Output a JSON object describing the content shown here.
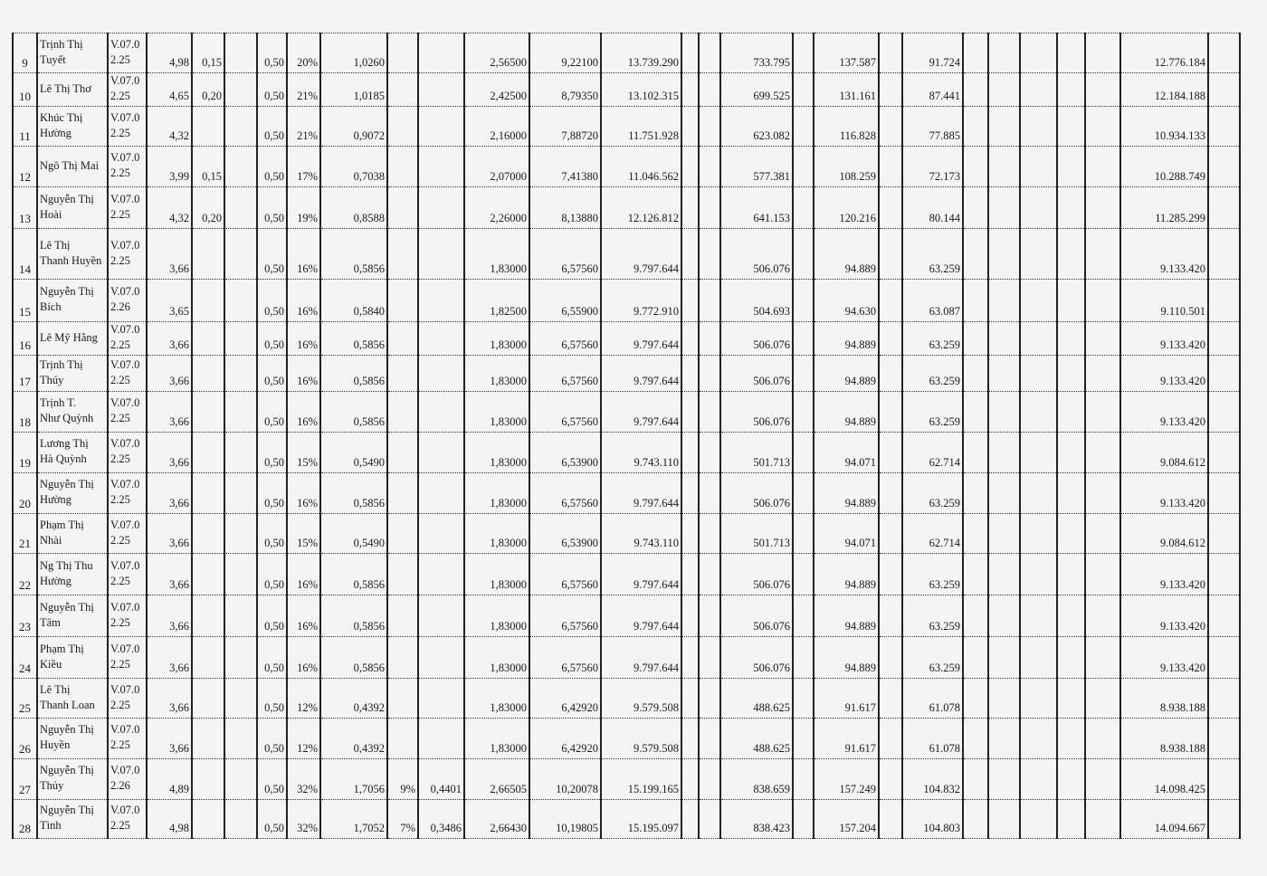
{
  "rows": [
    [
      "9",
      "Trịnh Thị\nTuyết",
      "V.07.0\n2.25",
      "4,98",
      "0,15",
      "",
      "0,50",
      "20%",
      "1,0260",
      "",
      "",
      "2,56500",
      "9,22100",
      "13.739.290",
      "",
      "",
      "733.795",
      "",
      "137.587",
      "",
      "91.724",
      "",
      "",
      "",
      "",
      "",
      "12.776.184",
      ""
    ],
    [
      "10",
      "Lê Thị Thơ",
      "V.07.0\n2.25",
      "4,65",
      "0,20",
      "",
      "0,50",
      "21%",
      "1,0185",
      "",
      "",
      "2,42500",
      "8,79350",
      "13.102.315",
      "",
      "",
      "699.525",
      "",
      "131.161",
      "",
      "87.441",
      "",
      "",
      "",
      "",
      "",
      "12.184.188",
      ""
    ],
    [
      "11",
      "Khúc Thị\nHường",
      "V.07.0\n2.25",
      "4,32",
      "",
      "",
      "0,50",
      "21%",
      "0,9072",
      "",
      "",
      "2,16000",
      "7,88720",
      "11.751.928",
      "",
      "",
      "623.082",
      "",
      "116.828",
      "",
      "77.885",
      "",
      "",
      "",
      "",
      "",
      "10.934.133",
      ""
    ],
    [
      "12",
      "Ngô Thị Mai",
      "V.07.0\n2.25",
      "3,99",
      "0,15",
      "",
      "0,50",
      "17%",
      "0,7038",
      "",
      "",
      "2,07000",
      "7,41380",
      "11.046.562",
      "",
      "",
      "577.381",
      "",
      "108.259",
      "",
      "72.173",
      "",
      "",
      "",
      "",
      "",
      "10.288.749",
      ""
    ],
    [
      "13",
      "Nguyễn Thị\nHoài",
      "V.07.0\n2.25",
      "4,32",
      "0,20",
      "",
      "0,50",
      "19%",
      "0,8588",
      "",
      "",
      "2,26000",
      "8,13880",
      "12.126.812",
      "",
      "",
      "641.153",
      "",
      "120.216",
      "",
      "80.144",
      "",
      "",
      "",
      "",
      "",
      "11.285.299",
      ""
    ],
    [
      "14",
      "Lê Thị\nThanh Huyền",
      "V.07.0\n2.25",
      "3,66",
      "",
      "",
      "0,50",
      "16%",
      "0,5856",
      "",
      "",
      "1,83000",
      "6,57560",
      "9.797.644",
      "",
      "",
      "506.076",
      "",
      "94.889",
      "",
      "63.259",
      "",
      "",
      "",
      "",
      "",
      "9.133.420",
      ""
    ],
    [
      "15",
      "Nguyễn Thị\nBích",
      "V.07.0\n2.26",
      "3,65",
      "",
      "",
      "0,50",
      "16%",
      "0,5840",
      "",
      "",
      "1,82500",
      "6,55900",
      "9.772.910",
      "",
      "",
      "504.693",
      "",
      "94.630",
      "",
      "63.087",
      "",
      "",
      "",
      "",
      "",
      "9.110.501",
      ""
    ],
    [
      "16",
      "Lê Mỹ Hằng",
      "V.07.0\n2.25",
      "3,66",
      "",
      "",
      "0,50",
      "16%",
      "0,5856",
      "",
      "",
      "1,83000",
      "6,57560",
      "9.797.644",
      "",
      "",
      "506.076",
      "",
      "94.889",
      "",
      "63.259",
      "",
      "",
      "",
      "",
      "",
      "9.133.420",
      ""
    ],
    [
      "17",
      "Trịnh Thị\nThúy",
      "V.07.0\n2.25",
      "3,66",
      "",
      "",
      "0,50",
      "16%",
      "0,5856",
      "",
      "",
      "1,83000",
      "6,57560",
      "9.797.644",
      "",
      "",
      "506.076",
      "",
      "94.889",
      "",
      "63.259",
      "",
      "",
      "",
      "",
      "",
      "9.133.420",
      ""
    ],
    [
      "18",
      "Trịnh T.\nNhư Quỳnh",
      "V.07.0\n2.25",
      "3,66",
      "",
      "",
      "0,50",
      "16%",
      "0,5856",
      "",
      "",
      "1,83000",
      "6,57560",
      "9.797.644",
      "",
      "",
      "506.076",
      "",
      "94.889",
      "",
      "63.259",
      "",
      "",
      "",
      "",
      "",
      "9.133.420",
      ""
    ],
    [
      "19",
      "Lương Thị\nHà Quỳnh",
      "V.07.0\n2.25",
      "3,66",
      "",
      "",
      "0,50",
      "15%",
      "0,5490",
      "",
      "",
      "1,83000",
      "6,53900",
      "9.743.110",
      "",
      "",
      "501.713",
      "",
      "94.071",
      "",
      "62.714",
      "",
      "",
      "",
      "",
      "",
      "9.084.612",
      ""
    ],
    [
      "20",
      "Nguyễn Thị\nHường",
      "V.07.0\n2.25",
      "3,66",
      "",
      "",
      "0,50",
      "16%",
      "0,5856",
      "",
      "",
      "1,83000",
      "6,57560",
      "9.797.644",
      "",
      "",
      "506.076",
      "",
      "94.889",
      "",
      "63.259",
      "",
      "",
      "",
      "",
      "",
      "9.133.420",
      ""
    ],
    [
      "21",
      "Phạm Thị\nNhài",
      "V.07.0\n2.25",
      "3,66",
      "",
      "",
      "0,50",
      "15%",
      "0,5490",
      "",
      "",
      "1,83000",
      "6,53900",
      "9.743.110",
      "",
      "",
      "501.713",
      "",
      "94.071",
      "",
      "62.714",
      "",
      "",
      "",
      "",
      "",
      "9.084.612",
      ""
    ],
    [
      "22",
      "Ng Thị Thu\nHường",
      "V.07.0\n2.25",
      "3,66",
      "",
      "",
      "0,50",
      "16%",
      "0,5856",
      "",
      "",
      "1,83000",
      "6,57560",
      "9.797.644",
      "",
      "",
      "506.076",
      "",
      "94.889",
      "",
      "63.259",
      "",
      "",
      "",
      "",
      "",
      "9.133.420",
      ""
    ],
    [
      "23",
      "Nguyễn Thị\nTâm",
      "V.07.0\n2.25",
      "3,66",
      "",
      "",
      "0,50",
      "16%",
      "0,5856",
      "",
      "",
      "1,83000",
      "6,57560",
      "9.797.644",
      "",
      "",
      "506.076",
      "",
      "94.889",
      "",
      "63.259",
      "",
      "",
      "",
      "",
      "",
      "9.133.420",
      ""
    ],
    [
      "24",
      "Phạm Thị\nKiều",
      "V.07.0\n2.25",
      "3,66",
      "",
      "",
      "0,50",
      "16%",
      "0,5856",
      "",
      "",
      "1,83000",
      "6,57560",
      "9.797.644",
      "",
      "",
      "506.076",
      "",
      "94.889",
      "",
      "63.259",
      "",
      "",
      "",
      "",
      "",
      "9.133.420",
      ""
    ],
    [
      "25",
      "Lê Thị\nThanh Loan",
      "V.07.0\n2.25",
      "3,66",
      "",
      "",
      "0,50",
      "12%",
      "0,4392",
      "",
      "",
      "1,83000",
      "6,42920",
      "9.579.508",
      "",
      "",
      "488.625",
      "",
      "91.617",
      "",
      "61.078",
      "",
      "",
      "",
      "",
      "",
      "8.938.188",
      ""
    ],
    [
      "26",
      "Nguyễn Thị\nHuyền",
      "V.07.0\n2.25",
      "3,66",
      "",
      "",
      "0,50",
      "12%",
      "0,4392",
      "",
      "",
      "1,83000",
      "6,42920",
      "9.579.508",
      "",
      "",
      "488.625",
      "",
      "91.617",
      "",
      "61.078",
      "",
      "",
      "",
      "",
      "",
      "8.938.188",
      ""
    ],
    [
      "27",
      "Nguyễn Thị\nThủy",
      "V.07.0\n2.26",
      "4,89",
      "",
      "",
      "0,50",
      "32%",
      "1,7056",
      "9%",
      "0,4401",
      "2,66505",
      "10,20078",
      "15.199.165",
      "",
      "",
      "838.659",
      "",
      "157.249",
      "",
      "104.832",
      "",
      "",
      "",
      "",
      "",
      "14.098.425",
      ""
    ],
    [
      "28",
      "Nguyễn Thị\nTình",
      "V.07.0\n2.25",
      "4,98",
      "",
      "",
      "0,50",
      "32%",
      "1,7052",
      "7%",
      "0,3486",
      "2,66430",
      "10,19805",
      "15.195.097",
      "",
      "",
      "838.423",
      "",
      "157.204",
      "",
      "104.803",
      "",
      "",
      "",
      "",
      "",
      "14.094.667",
      ""
    ]
  ]
}
